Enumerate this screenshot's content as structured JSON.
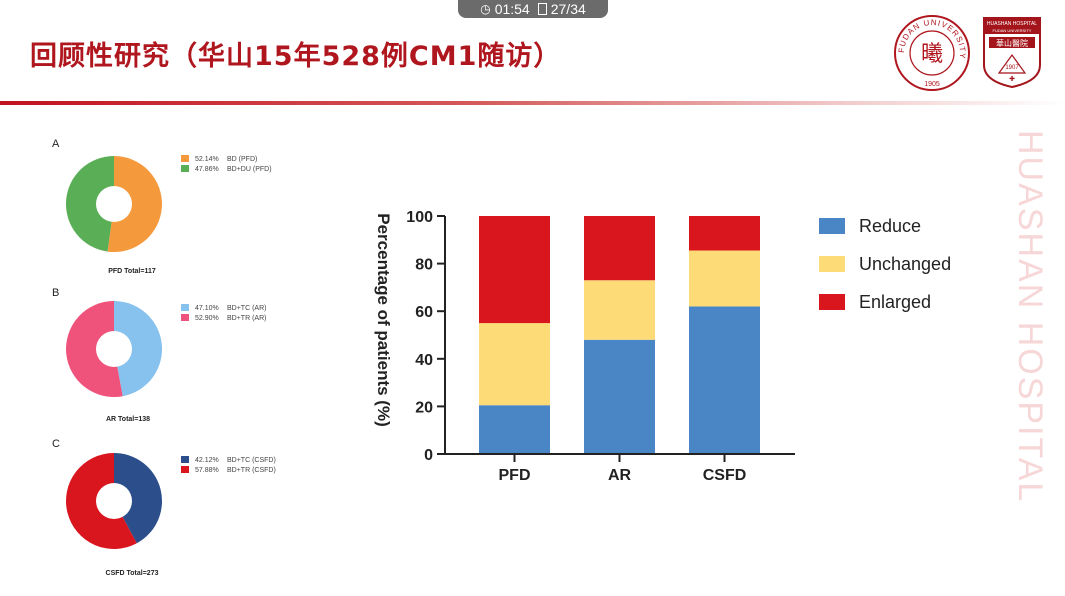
{
  "status_bar": {
    "time": "01:54",
    "page": "27/34"
  },
  "slide": {
    "title": "回顾性研究（华山15年528例CM1随访）",
    "watermark": "HUASHAN HOSPITAL",
    "logos": {
      "fudan": {
        "ring_text": "FUDAN UNIVERSITY",
        "year": "1905",
        "center_glyph": "曦"
      },
      "huashan": {
        "header": "HUASHAN HOSPITAL",
        "subheader": "FUDAN UNIVERSITY",
        "chinese": "華山醫院",
        "year": "1907"
      }
    }
  },
  "colors": {
    "title": "#b0161e",
    "reduce": "#4a86c5",
    "unchanged": "#fddc77",
    "enlarged": "#d9151e"
  },
  "chart_data": [
    {
      "type": "pie",
      "panel": "A",
      "caption": "PFD Total=117",
      "slices": [
        {
          "label": "BD (PFD)",
          "percent": 52.14,
          "percent_text": "52.14%",
          "color": "#f59a3c"
        },
        {
          "label": "BD+DU (PFD)",
          "percent": 47.86,
          "percent_text": "47.86%",
          "color": "#5aae55"
        }
      ]
    },
    {
      "type": "pie",
      "panel": "B",
      "caption": "AR Total=138",
      "slices": [
        {
          "label": "BD+TC (AR)",
          "percent": 47.1,
          "percent_text": "47.10%",
          "color": "#87c2ee"
        },
        {
          "label": "BD+TR (AR)",
          "percent": 52.9,
          "percent_text": "52.90%",
          "color": "#ef527a"
        }
      ]
    },
    {
      "type": "pie",
      "panel": "C",
      "caption": "CSFD Total=273",
      "slices": [
        {
          "label": "BD+TC (CSFD)",
          "percent": 42.12,
          "percent_text": "42.12%",
          "color": "#2c4f8c"
        },
        {
          "label": "BD+TR (CSFD)",
          "percent": 57.88,
          "percent_text": "57.88%",
          "color": "#d9151e"
        }
      ]
    },
    {
      "type": "bar",
      "stacked": true,
      "categories": [
        "PFD",
        "AR",
        "CSFD"
      ],
      "series": [
        {
          "name": "Reduce",
          "values": [
            20.5,
            48,
            62
          ],
          "color": "#4a86c5"
        },
        {
          "name": "Unchanged",
          "values": [
            34.5,
            25,
            23.5
          ],
          "color": "#fddc77"
        },
        {
          "name": "Enlarged",
          "values": [
            45,
            27,
            14.5
          ],
          "color": "#d9151e"
        }
      ],
      "ylabel": "Percentage  of  patients (%)",
      "ylim": [
        0,
        100
      ],
      "yticks": [
        "0",
        "20",
        "40",
        "60",
        "80",
        "100"
      ],
      "legend_position": "right",
      "grid": false
    }
  ]
}
